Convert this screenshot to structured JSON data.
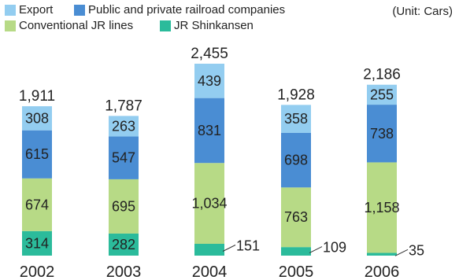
{
  "unit": "(Unit: Cars)",
  "colors": {
    "export": "#93cdf0",
    "public": "#4a8dd3",
    "conventional": "#b7da86",
    "shinkansen": "#2bbb9b"
  },
  "legend": [
    {
      "label": "Export",
      "color": "#93cdf0"
    },
    {
      "label": "Public and private railroad companies",
      "color": "#4a8dd3"
    },
    {
      "label": "Conventional JR lines",
      "color": "#b7da86"
    },
    {
      "label": "JR Shinkansen",
      "color": "#2bbb9b"
    }
  ],
  "chart_data": {
    "type": "bar",
    "stacked": true,
    "categories": [
      "2002",
      "2003",
      "2004",
      "2005",
      "2006"
    ],
    "series": [
      {
        "name": "JR Shinkansen",
        "values": [
          314,
          282,
          151,
          109,
          35
        ],
        "labels": [
          "314",
          "282",
          "151",
          "109",
          "35"
        ]
      },
      {
        "name": "Conventional JR lines",
        "values": [
          674,
          695,
          1034,
          763,
          1158
        ],
        "labels": [
          "674",
          "695",
          "1,034",
          "763",
          "1,158"
        ]
      },
      {
        "name": "Public and private railroad companies",
        "values": [
          615,
          547,
          831,
          698,
          738
        ],
        "labels": [
          "615",
          "547",
          "831",
          "698",
          "738"
        ]
      },
      {
        "name": "Export",
        "values": [
          308,
          263,
          439,
          358,
          255
        ],
        "labels": [
          "308",
          "263",
          "439",
          "358",
          "255"
        ]
      }
    ],
    "totals": [
      1911,
      1787,
      2455,
      1928,
      2186
    ],
    "total_labels": [
      "1,911",
      "1,787",
      "2,455",
      "1,928",
      "2,186"
    ],
    "unit": "Cars"
  }
}
